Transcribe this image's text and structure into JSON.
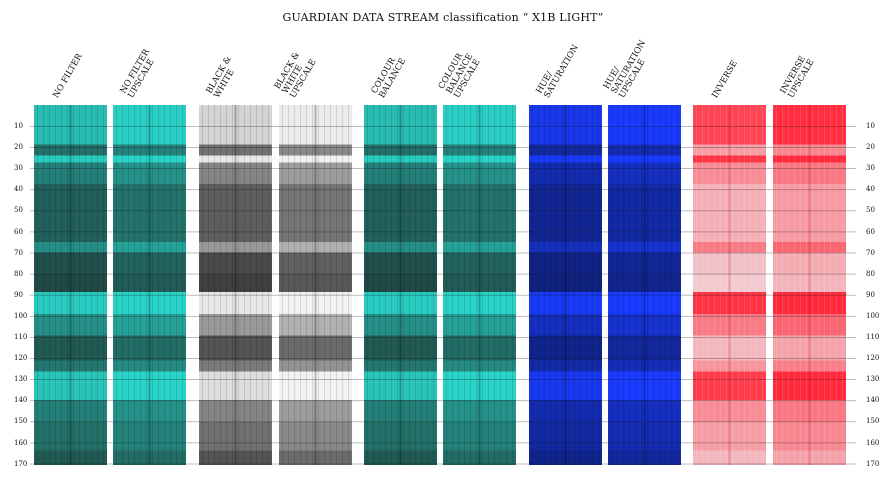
{
  "title": "GUARDIAN DATA STREAM classification “ X1B LIGHT”",
  "columns": [
    {
      "label": "NO FILTER",
      "variant": "teal"
    },
    {
      "label": "NO FILTER\nUPSCALE",
      "variant": "teal-up"
    },
    {
      "label": "BLACK &\nWHITE",
      "variant": "bw"
    },
    {
      "label": "BLACK &\nWHITE\nUPSCALE",
      "variant": "bw-up"
    },
    {
      "label": "COLOUR\nBALANCE",
      "variant": "teal"
    },
    {
      "label": "COLOUR\nBALANCE\nUPSCALE",
      "variant": "teal-up"
    },
    {
      "label": "HUE/\nSATURATION",
      "variant": "blue"
    },
    {
      "label": "HUE/\nSATURATION\nUPSCALE",
      "variant": "blue-up"
    },
    {
      "label": "INVERSE",
      "variant": "red"
    },
    {
      "label": "INVERSE\nUPSCALE",
      "variant": "red-up"
    }
  ],
  "ticks": [
    "10",
    "20",
    "30",
    "40",
    "50",
    "60",
    "70",
    "80",
    "90",
    "100",
    "110",
    "120",
    "130",
    "140",
    "150",
    "160",
    "170"
  ],
  "colors": {
    "teal_bright": "#2ad3c8",
    "teal_dark": "#1f3a36",
    "blue_bright": "#1a3cff",
    "blue_dark": "#0e1f6e",
    "red_bright": "#ff2a3c",
    "red_light": "#f0dcdf",
    "bw_light": "#f2f2f2",
    "bw_dark": "#2c2c2c"
  }
}
